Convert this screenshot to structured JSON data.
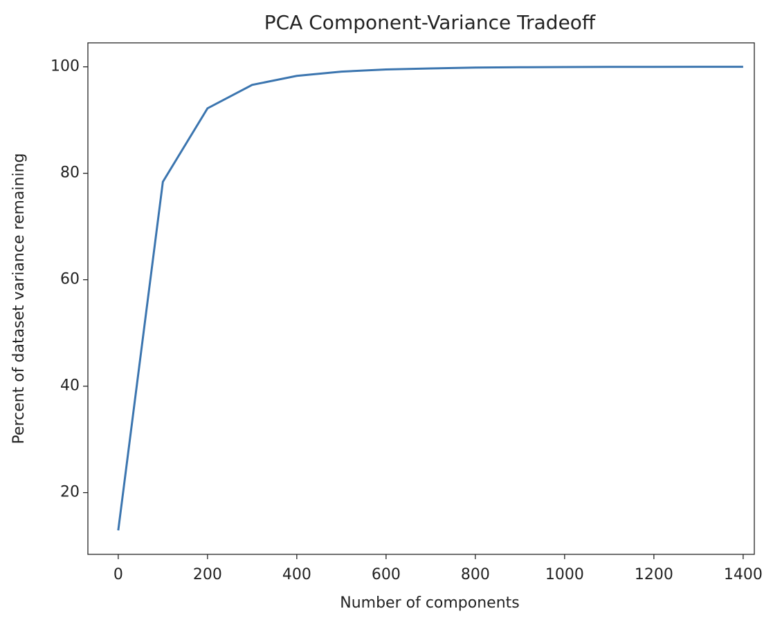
{
  "chart_data": {
    "type": "line",
    "title": "PCA Component-Variance Tradeoff",
    "x_label": "Number of components",
    "y_label": "Percent of dataset variance remaining",
    "x": [
      0,
      100,
      200,
      300,
      400,
      500,
      600,
      700,
      800,
      900,
      1000,
      1100,
      1200,
      1300,
      1400
    ],
    "series": [
      {
        "color": "#3b75af",
        "values": [
          12.9,
          78.4,
          92.2,
          96.6,
          98.3,
          99.1,
          99.5,
          99.7,
          99.85,
          99.92,
          99.96,
          99.98,
          99.99,
          100,
          100
        ]
      }
    ],
    "xlim": [
      -68,
      1425
    ],
    "ylim": [
      8.4,
      104.5
    ],
    "xticks": [
      0,
      200,
      400,
      600,
      800,
      1000,
      1200,
      1400
    ],
    "yticks": [
      20,
      40,
      60,
      80,
      100
    ],
    "grid": false
  }
}
